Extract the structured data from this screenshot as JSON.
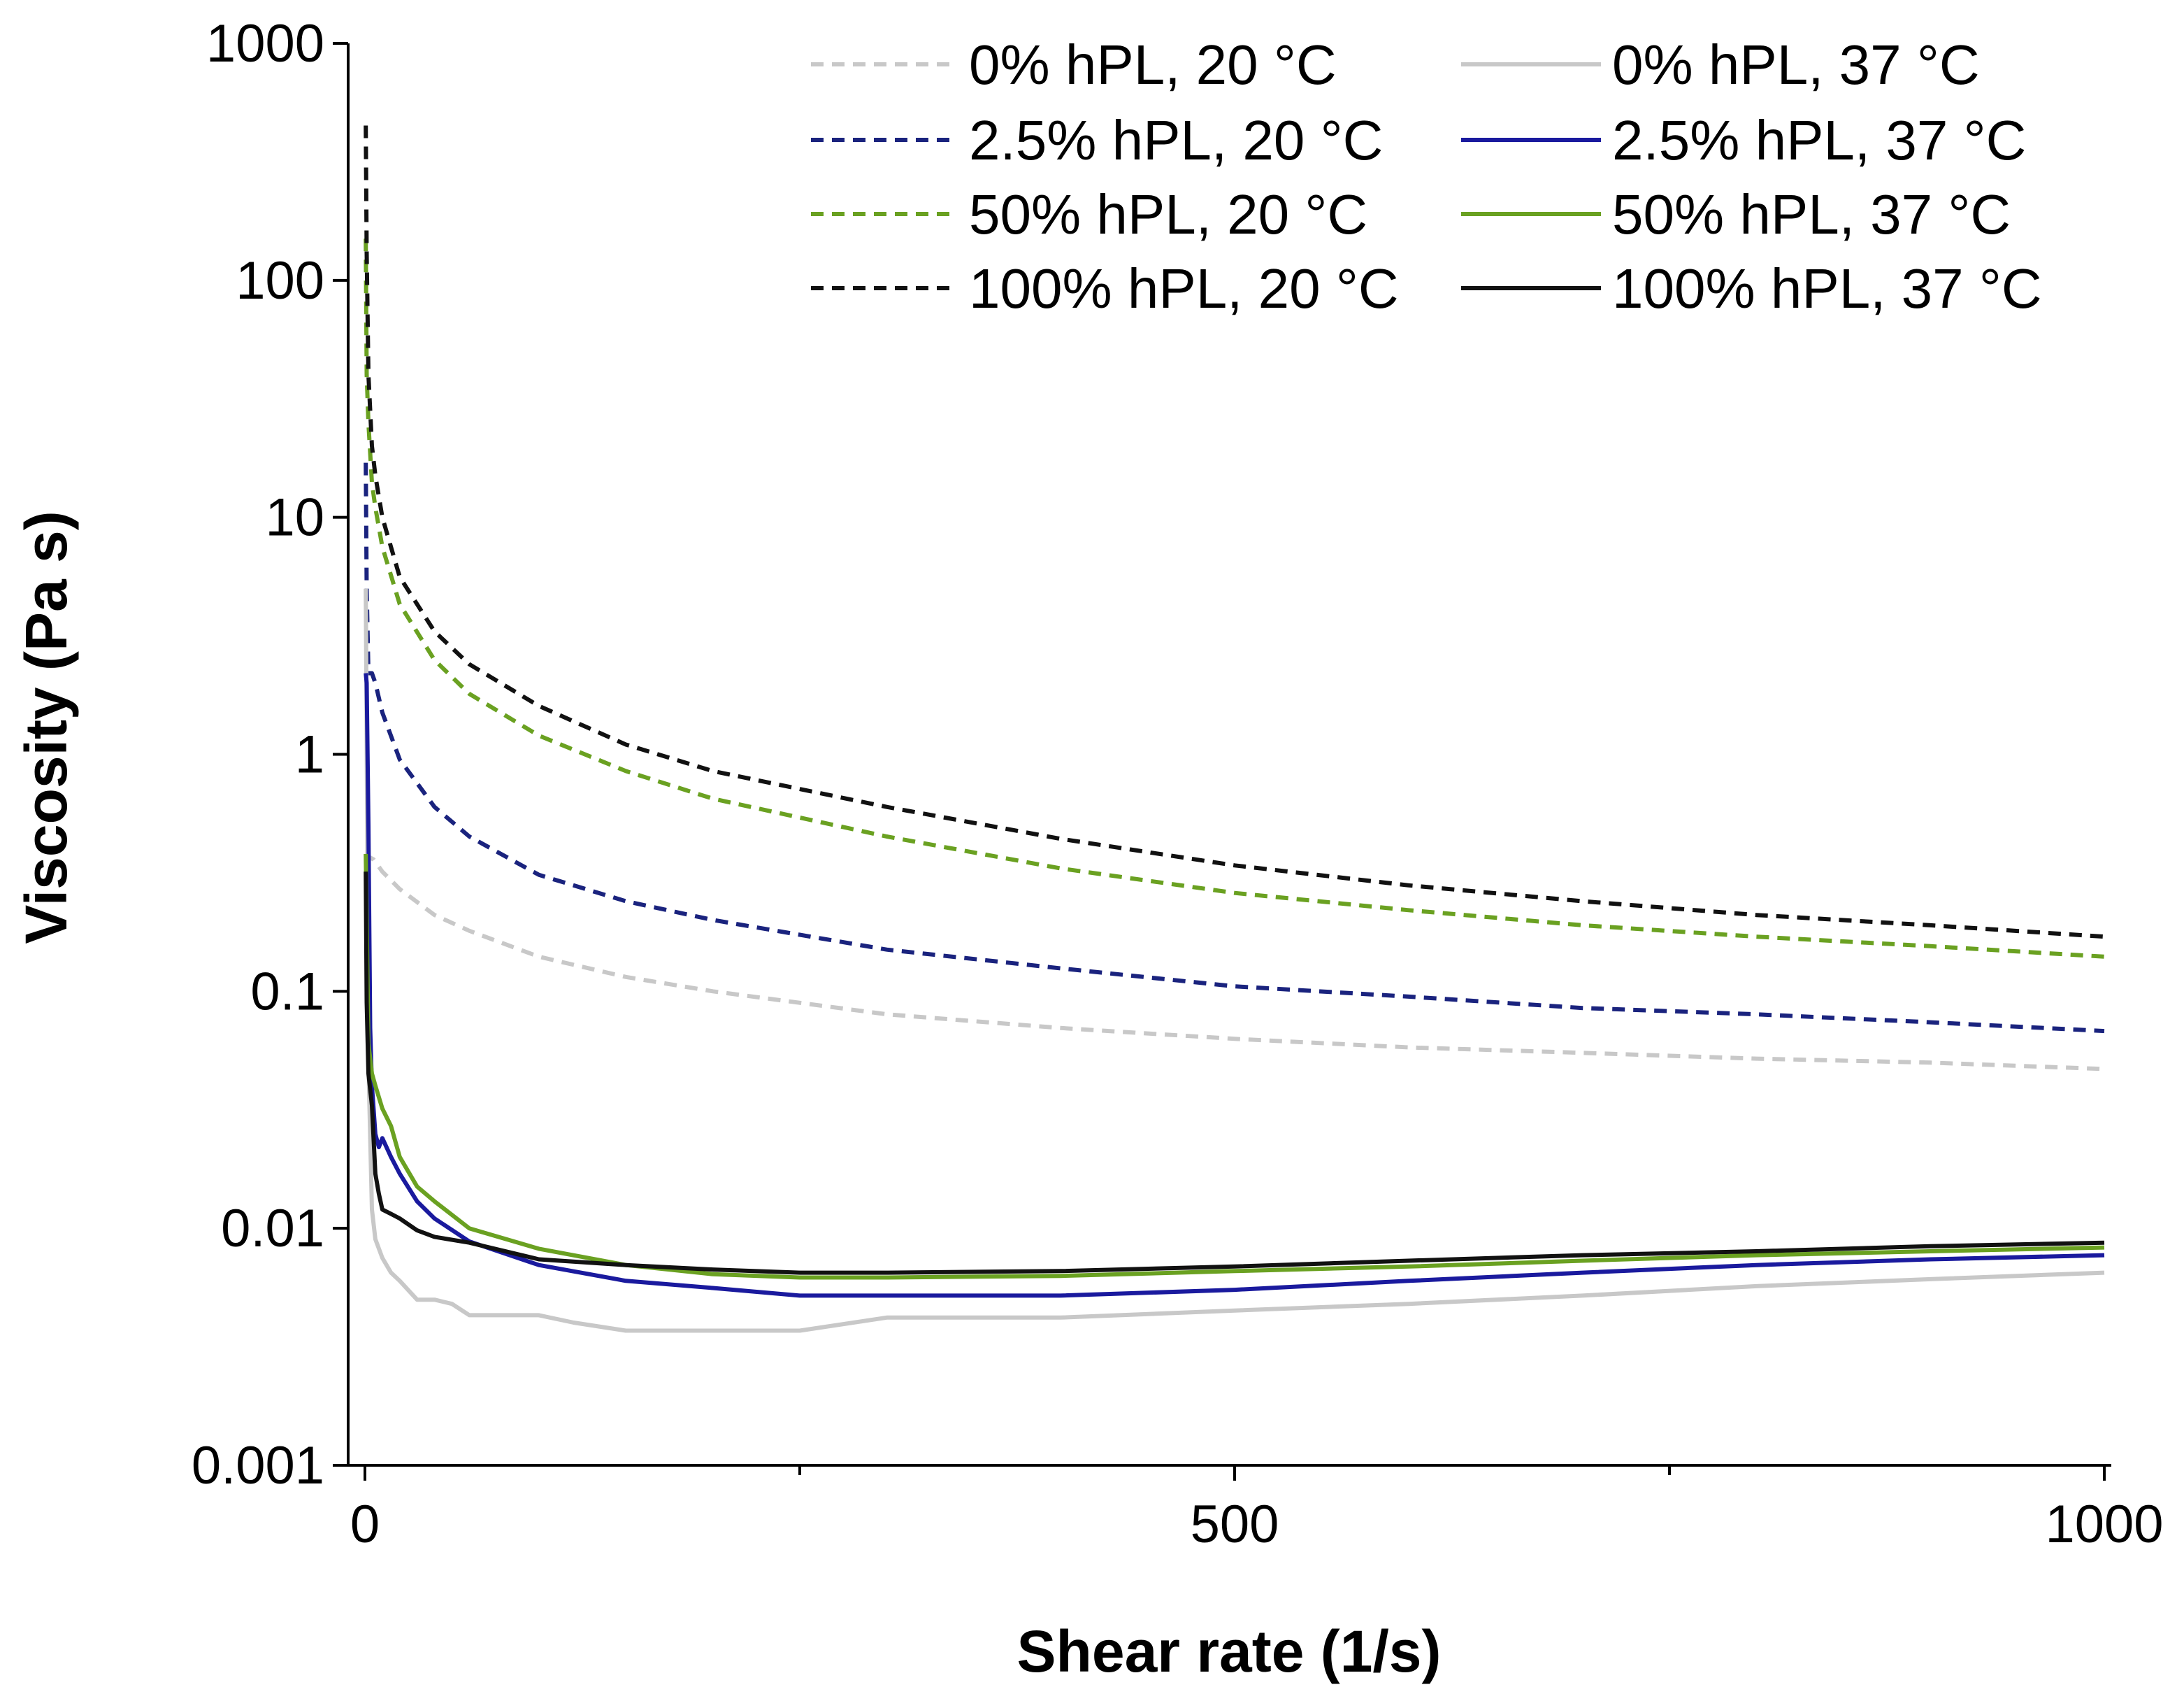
{
  "chart_data": {
    "type": "line",
    "title": "",
    "xlabel": "Shear rate (1/s)",
    "ylabel": "Viscosity (Pa s)",
    "x_scale": "linear",
    "y_scale": "log",
    "xlim": [
      0,
      1000
    ],
    "ylim": [
      0.001,
      1000
    ],
    "x_ticks": [
      0,
      500,
      1000
    ],
    "x_tick_labels": [
      "0",
      "500",
      "1000"
    ],
    "x_minor_ticks": [
      250,
      750
    ],
    "y_ticks": [
      0.001,
      0.01,
      0.1,
      1,
      10,
      100,
      1000
    ],
    "y_tick_labels": [
      "0.001",
      "0.01",
      "0.1",
      "1",
      "10",
      "100",
      "1000"
    ],
    "grid": false,
    "legend_position": "top-right",
    "series": [
      {
        "name": "0% hPL, 20 °C",
        "color": "#c8c8c8",
        "dash": "dashed",
        "x": [
          1,
          2,
          5,
          10,
          20,
          40,
          60,
          100,
          150,
          200,
          300,
          400,
          500,
          600,
          700,
          800,
          900,
          1000
        ],
        "y": [
          0.35,
          0.37,
          0.36,
          0.32,
          0.27,
          0.21,
          0.18,
          0.14,
          0.115,
          0.1,
          0.08,
          0.07,
          0.063,
          0.058,
          0.055,
          0.052,
          0.05,
          0.047
        ]
      },
      {
        "name": "2.5% hPL, 20 °C",
        "color": "#1a237e",
        "dash": "dashed",
        "x": [
          0.5,
          1,
          2,
          4,
          6,
          10,
          20,
          40,
          60,
          100,
          150,
          200,
          300,
          400,
          500,
          600,
          700,
          800,
          900,
          1000
        ],
        "y": [
          17,
          5,
          2.2,
          2.2,
          2.0,
          1.5,
          0.95,
          0.6,
          0.45,
          0.31,
          0.24,
          0.2,
          0.15,
          0.125,
          0.105,
          0.095,
          0.085,
          0.08,
          0.074,
          0.068
        ]
      },
      {
        "name": "50% hPL, 20 °C",
        "color": "#6aa121",
        "dash": "dashed",
        "x": [
          0.5,
          1,
          2,
          4,
          6,
          10,
          20,
          40,
          60,
          100,
          150,
          200,
          300,
          400,
          500,
          600,
          700,
          800,
          900,
          1000
        ],
        "y": [
          150,
          40,
          25,
          14,
          11,
          7.5,
          4.3,
          2.5,
          1.8,
          1.2,
          0.85,
          0.65,
          0.45,
          0.33,
          0.26,
          0.22,
          0.19,
          0.17,
          0.155,
          0.14
        ]
      },
      {
        "name": "100% hPL, 20 °C",
        "color": "#111111",
        "dash": "dashed",
        "x": [
          0.5,
          1,
          2,
          4,
          6,
          10,
          20,
          40,
          60,
          100,
          150,
          200,
          300,
          400,
          500,
          600,
          700,
          800,
          900,
          1000
        ],
        "y": [
          450,
          130,
          40,
          20,
          15,
          10,
          5.6,
          3.3,
          2.4,
          1.6,
          1.1,
          0.85,
          0.6,
          0.44,
          0.34,
          0.28,
          0.24,
          0.21,
          0.19,
          0.17
        ]
      },
      {
        "name": "0% hPL, 37 °C",
        "color": "#c8c8c8",
        "dash": "solid",
        "x": [
          0.5,
          1,
          2,
          4,
          6,
          10,
          15,
          20,
          30,
          40,
          50,
          60,
          100,
          120,
          150,
          200,
          250,
          300,
          400,
          500,
          600,
          700,
          800,
          900,
          1000
        ],
        "y": [
          5,
          1.2,
          0.05,
          0.012,
          0.009,
          0.0075,
          0.0065,
          0.006,
          0.005,
          0.005,
          0.0048,
          0.0043,
          0.0043,
          0.004,
          0.0037,
          0.0037,
          0.0037,
          0.0042,
          0.0042,
          0.0045,
          0.0048,
          0.0052,
          0.0057,
          0.0061,
          0.0065
        ]
      },
      {
        "name": "2.5% hPL, 37 °C",
        "color": "#1a1a9e",
        "dash": "solid",
        "x": [
          0.5,
          1,
          2,
          3,
          4,
          6,
          8,
          10,
          15,
          20,
          30,
          40,
          60,
          100,
          150,
          200,
          250,
          300,
          400,
          500,
          600,
          700,
          800,
          900,
          1000
        ],
        "y": [
          2.2,
          2.0,
          0.5,
          0.07,
          0.04,
          0.025,
          0.022,
          0.024,
          0.02,
          0.017,
          0.013,
          0.011,
          0.0088,
          0.007,
          0.006,
          0.0056,
          0.0052,
          0.0052,
          0.0052,
          0.0055,
          0.006,
          0.0065,
          0.007,
          0.0074,
          0.0077
        ]
      },
      {
        "name": "50% hPL, 37 °C",
        "color": "#6aa121",
        "dash": "solid",
        "x": [
          0.5,
          1,
          2,
          4,
          6,
          10,
          15,
          20,
          30,
          40,
          60,
          100,
          150,
          200,
          250,
          300,
          400,
          500,
          600,
          700,
          800,
          900,
          1000
        ],
        "y": [
          0.38,
          0.2,
          0.06,
          0.045,
          0.04,
          0.032,
          0.027,
          0.02,
          0.015,
          0.013,
          0.01,
          0.0082,
          0.007,
          0.0064,
          0.0062,
          0.0062,
          0.0063,
          0.0066,
          0.0069,
          0.0073,
          0.0077,
          0.008,
          0.0083
        ]
      },
      {
        "name": "100% hPL, 37 °C",
        "color": "#111111",
        "dash": "solid",
        "x": [
          0.5,
          1,
          2,
          4,
          6,
          8,
          10,
          15,
          20,
          30,
          40,
          60,
          100,
          150,
          200,
          250,
          300,
          400,
          500,
          600,
          700,
          800,
          900,
          1000
        ],
        "y": [
          0.32,
          0.09,
          0.045,
          0.033,
          0.017,
          0.014,
          0.012,
          0.0115,
          0.011,
          0.0098,
          0.0092,
          0.0087,
          0.0074,
          0.007,
          0.0067,
          0.0065,
          0.0065,
          0.0066,
          0.0069,
          0.0073,
          0.0077,
          0.008,
          0.0084,
          0.0087
        ]
      }
    ]
  }
}
